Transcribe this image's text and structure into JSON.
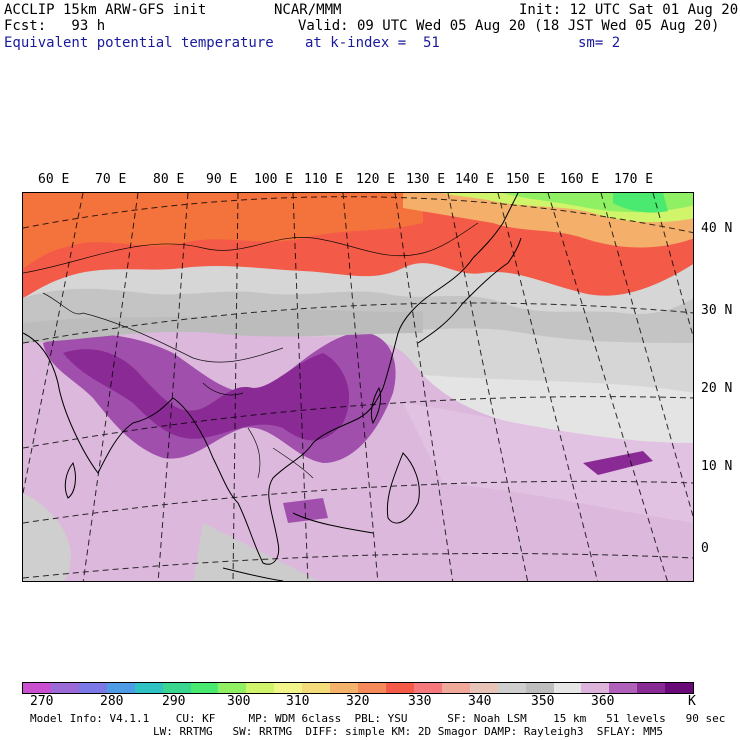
{
  "header": {
    "model_title": "ACCLIP 15km ARW-GFS init",
    "org": "NCAR/MMM",
    "init": "Init: 12 UTC Sat 01 Aug 20",
    "fcst": "Fcst:   93 h",
    "valid": "Valid: 09 UTC Wed 05 Aug 20 (18 JST Wed 05 Aug 20)",
    "field": "Equivalent potential temperature",
    "level": "at k-index =  51",
    "smoothing": "sm= 2"
  },
  "map": {
    "longitude_labels": [
      "60 E",
      "70 E",
      "80 E",
      "90 E",
      "100 E",
      "110 E",
      "120 E",
      "130 E",
      "140 E",
      "150 E",
      "160 E",
      "170 E"
    ],
    "latitude_labels": [
      "40 N",
      "30 N",
      "20 N",
      "10 N",
      "0"
    ]
  },
  "colorbar": {
    "labels": [
      "270",
      "280",
      "290",
      "300",
      "310",
      "320",
      "330",
      "340",
      "350",
      "360"
    ],
    "unit": "K",
    "colors": [
      "#c94fd0",
      "#9c6ad6",
      "#7b78e8",
      "#4f9ce6",
      "#2ec2c2",
      "#3ad690",
      "#49ea6f",
      "#90f064",
      "#d0f46a",
      "#f2f58a",
      "#f5dc7a",
      "#f4b36a",
      "#f48a5a",
      "#f45a48",
      "#f4787c",
      "#f0a898",
      "#e8c4b8",
      "#cfcfcf",
      "#bdbdbd",
      "#e6e6e6",
      "#dcb4dc",
      "#b060b8",
      "#8a2a94",
      "#6a0a78"
    ]
  },
  "footer": {
    "line1": "Model Info: V4.1.1    CU: KF     MP: WDM 6class  PBL: YSU      SF: Noah LSM    15 km   51 levels   90 sec",
    "line2": "LW: RRTMG   SW: RRTMG  DIFF: simple KM: 2D Smagor DAMP: Rayleigh3  SFLAY: MM5"
  }
}
